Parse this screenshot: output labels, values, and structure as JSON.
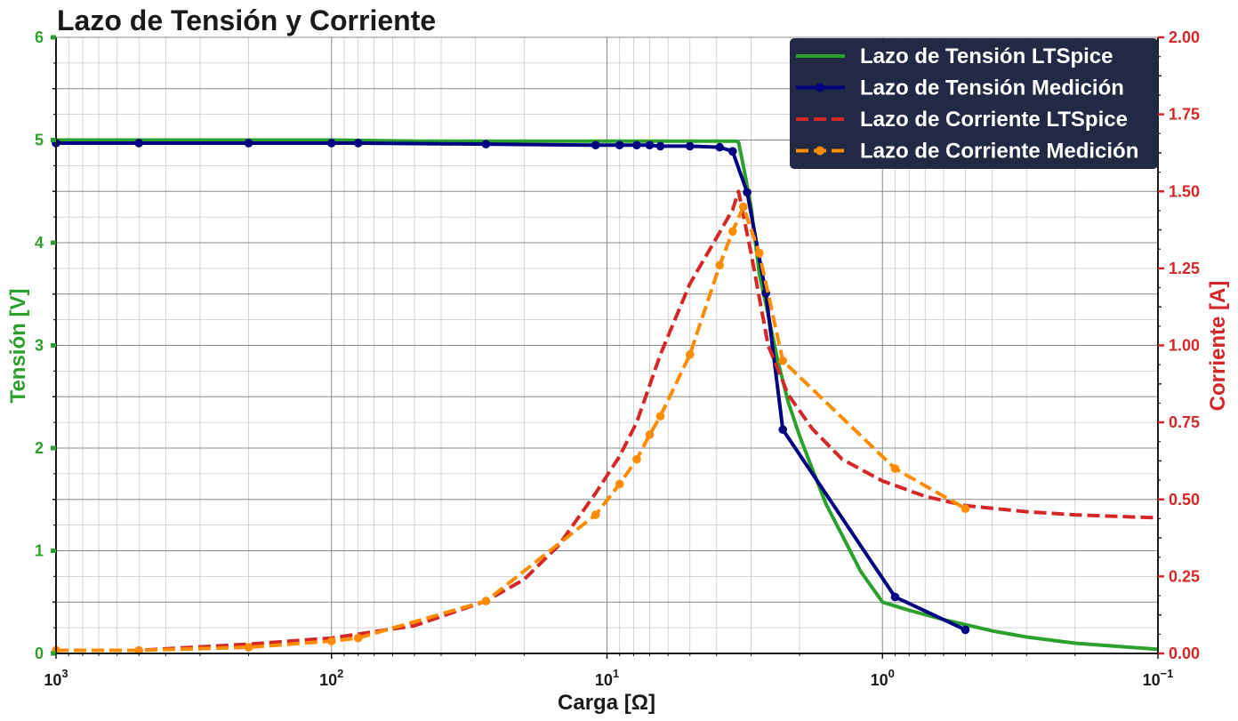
{
  "chart_data": {
    "type": "line",
    "title": "Lazo de Tensión y Corriente",
    "xlabel": "Carga [Ω]",
    "ylabel_left": "Tensión [V]",
    "ylabel_right": "Corriente [A]",
    "x_scale": "log",
    "x_reversed": true,
    "xlim": [
      1000,
      0.1
    ],
    "ylim_left": [
      0,
      6
    ],
    "ylim_right": [
      0,
      2
    ],
    "x_ticks": [
      {
        "value": 1000,
        "base": "10",
        "exp": "3"
      },
      {
        "value": 100,
        "base": "10",
        "exp": "2"
      },
      {
        "value": 10,
        "base": "10",
        "exp": "1"
      },
      {
        "value": 1,
        "base": "10",
        "exp": "0"
      },
      {
        "value": 0.1,
        "base": "10",
        "exp": "−1"
      }
    ],
    "y_left_ticks": [
      "0",
      "1",
      "2",
      "3",
      "4",
      "5",
      "6"
    ],
    "y_right_ticks": [
      "0.00",
      "0.25",
      "0.50",
      "0.75",
      "1.00",
      "1.25",
      "1.50",
      "1.75",
      "2.00"
    ],
    "grid": true,
    "legend_position": "top-right",
    "colors": {
      "tension_ltspice": "#2ca02c",
      "tension_medicion": "#000080",
      "corriente_ltspice": "#d62728",
      "corriente_medicion": "#ff8c00",
      "left_axis": "#2ca02c",
      "right_axis": "#d62728",
      "legend_bg": "#212944"
    },
    "series": [
      {
        "name": "Lazo de Tensión LTSpice",
        "axis": "left",
        "style": "solid",
        "markers": false,
        "x": [
          1000,
          500,
          200,
          100,
          50,
          20,
          10,
          7,
          5,
          4,
          3.6,
          3.4,
          3.33,
          3.2,
          3.0,
          2.8,
          2.6,
          2.4,
          2.2,
          2.0,
          1.8,
          1.6,
          1.4,
          1.2,
          1.0,
          0.8,
          0.6,
          0.4,
          0.3,
          0.2,
          0.1
        ],
        "y": [
          5.0,
          5.0,
          5.0,
          5.0,
          4.99,
          4.99,
          4.99,
          4.99,
          4.99,
          4.99,
          4.99,
          4.99,
          4.98,
          4.75,
          4.35,
          3.7,
          3.3,
          2.85,
          2.45,
          2.12,
          1.8,
          1.45,
          1.15,
          0.8,
          0.5,
          0.42,
          0.33,
          0.22,
          0.16,
          0.1,
          0.04
        ]
      },
      {
        "name": "Lazo de Tensión Medición",
        "axis": "left",
        "style": "solid",
        "markers": true,
        "x": [
          1000,
          500,
          200,
          100,
          80,
          27.5,
          11,
          9,
          7.8,
          7,
          6.4,
          5,
          3.9,
          3.5,
          3.1,
          2.65,
          2.3,
          0.9,
          0.5
        ],
        "y": [
          4.97,
          4.97,
          4.97,
          4.97,
          4.97,
          4.96,
          4.95,
          4.95,
          4.95,
          4.95,
          4.94,
          4.94,
          4.93,
          4.89,
          4.49,
          3.51,
          2.18,
          0.55,
          0.23
        ]
      },
      {
        "name": "Lazo de Corriente LTSpice",
        "axis": "right",
        "style": "dashed",
        "markers": false,
        "x": [
          1000,
          500,
          200,
          100,
          50,
          27.5,
          20,
          15,
          11,
          9,
          7.8,
          6.4,
          5,
          4,
          3.5,
          3.33,
          3.0,
          2.6,
          2.2,
          1.8,
          1.4,
          1.0,
          0.7,
          0.5,
          0.3,
          0.2,
          0.1
        ],
        "y": [
          0.01,
          0.01,
          0.03,
          0.05,
          0.09,
          0.17,
          0.24,
          0.35,
          0.52,
          0.64,
          0.75,
          0.97,
          1.2,
          1.35,
          1.44,
          1.5,
          1.3,
          1.0,
          0.84,
          0.73,
          0.63,
          0.56,
          0.51,
          0.48,
          0.46,
          0.45,
          0.44
        ]
      },
      {
        "name": "Lazo de Corriente Medición",
        "axis": "right",
        "style": "dashed",
        "markers": true,
        "x": [
          1000,
          500,
          200,
          100,
          80,
          27.5,
          11,
          9,
          7.8,
          7,
          6.4,
          5,
          3.9,
          3.5,
          3.2,
          2.8,
          2.3,
          0.9,
          0.5
        ],
        "y": [
          0.01,
          0.01,
          0.02,
          0.04,
          0.05,
          0.17,
          0.45,
          0.55,
          0.63,
          0.71,
          0.77,
          0.97,
          1.26,
          1.37,
          1.45,
          1.3,
          0.95,
          0.6,
          0.47
        ]
      }
    ]
  }
}
